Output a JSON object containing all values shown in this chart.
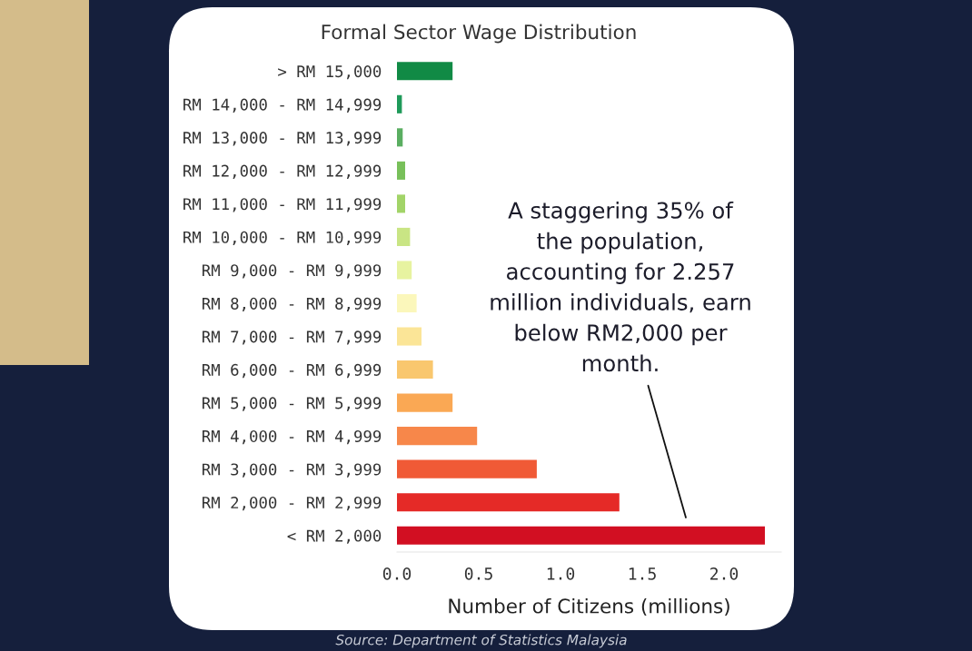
{
  "chart_data": {
    "type": "bar",
    "orientation": "horizontal",
    "title": "Formal Sector Wage Distribution",
    "xlabel": "Number of Citizens (millions)",
    "categories": [
      "> RM 15,000",
      "RM 14,000 - RM 14,999",
      "RM 13,000 - RM 13,999",
      "RM 12,000 - RM 12,999",
      "RM 11,000 - RM 11,999",
      "RM 10,000 - RM 10,999",
      "RM 9,000 - RM 9,999",
      "RM 8,000 - RM 8,999",
      "RM 7,000 - RM 7,999",
      "RM 6,000 - RM 6,999",
      "RM 5,000 - RM 5,999",
      "RM 4,000 - RM 4,999",
      "RM 3,000 - RM 3,999",
      "RM 2,000 - RM 2,999",
      "< RM 2,000"
    ],
    "values": [
      0.34,
      0.03,
      0.035,
      0.05,
      0.05,
      0.08,
      0.09,
      0.12,
      0.15,
      0.22,
      0.34,
      0.49,
      0.855,
      1.36,
      2.25
    ],
    "colors": [
      "#118a45",
      "#1f9a5a",
      "#5aae61",
      "#78c05a",
      "#a2d468",
      "#c9e584",
      "#e7f3a0",
      "#fbf7bb",
      "#fbe597",
      "#f9c76e",
      "#faa854",
      "#f7874a",
      "#f05a36",
      "#e52a27",
      "#d20f22"
    ],
    "xlim": [
      0,
      2.35
    ],
    "xticks": [
      {
        "value": 0,
        "label": "0.0"
      },
      {
        "value": 0.5,
        "label": "0.5"
      },
      {
        "value": 1,
        "label": "1.0"
      },
      {
        "value": 1.5,
        "label": "1.5"
      },
      {
        "value": 2,
        "label": "2.0"
      }
    ],
    "grid": false,
    "legend": false,
    "annotations": [
      "A staggering 35% of\nthe population,\naccounting for 2.257\nmillion individuals, earn\nbelow RM2,000 per\nmonth.",
      "Source: Department of Statistics Malaysia"
    ]
  }
}
